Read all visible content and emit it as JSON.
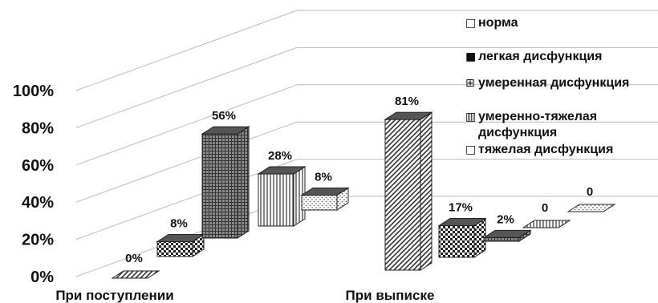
{
  "chart_data": {
    "type": "bar",
    "subtype": "3d-clustered-column",
    "categories": [
      "При поступлении",
      "При выписке"
    ],
    "series": [
      {
        "name": "норма",
        "values": [
          0,
          81
        ],
        "labels": [
          "0%",
          "81%"
        ],
        "pattern": "diagonal"
      },
      {
        "name": "легкая дисфункция",
        "values": [
          8,
          17
        ],
        "labels": [
          "8%",
          "17%"
        ],
        "pattern": "checker"
      },
      {
        "name": "умеренная дисфункция",
        "values": [
          56,
          2
        ],
        "labels": [
          "56%",
          "2%"
        ],
        "pattern": "grid"
      },
      {
        "name": "умеренно-тяжелая дисфункция",
        "values": [
          28,
          0
        ],
        "labels": [
          "28%",
          "0"
        ],
        "pattern": "vlines"
      },
      {
        "name": "тяжелая дисфункция",
        "values": [
          8,
          0
        ],
        "labels": [
          "8%",
          "0"
        ],
        "pattern": "dots"
      }
    ],
    "legend": [
      {
        "glyph": "□",
        "lines": [
          "норма"
        ]
      },
      {
        "glyph": "■",
        "lines": [
          "легкая дисфункция"
        ]
      },
      {
        "glyph": "⊞",
        "lines": [
          "умеренная дисфункция"
        ]
      },
      {
        "glyph": "▥",
        "lines": [
          "умеренно-тяжелая",
          "дисфункция"
        ]
      },
      {
        "glyph": "□",
        "lines": [
          "тяжелая дисфункция"
        ]
      }
    ],
    "y_ticks": [
      "0%",
      "20%",
      "40%",
      "60%",
      "80%",
      "100%"
    ],
    "ylim": [
      0,
      100
    ],
    "legend_position": "top-right",
    "grid": true,
    "colors": {
      "fill_dark": "#555555",
      "fill_light": "#ffffff",
      "stroke": "#222222",
      "grid": "#bbbbbb"
    }
  }
}
